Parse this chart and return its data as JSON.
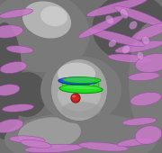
{
  "fig_width": 1.8,
  "fig_height": 1.7,
  "dpi": 100,
  "bg_color": "#707070",
  "gray_dark": "#555555",
  "gray_mid": "#7a7a7a",
  "gray_light": "#aaaaaa",
  "gray_highlight": "#cccccc",
  "gray_white": "#e0e0e0",
  "purple": "#c87ac8",
  "purple_dark": "#9944aa",
  "purple_light": "#dd99dd",
  "ligand_green": "#22dd22",
  "ligand_green_dark": "#009900",
  "ligand_blue": "#2255ee",
  "ligand_blue_dark": "#0033aa",
  "ligand_red": "#cc2222",
  "ligand_red_dark": "#881111"
}
